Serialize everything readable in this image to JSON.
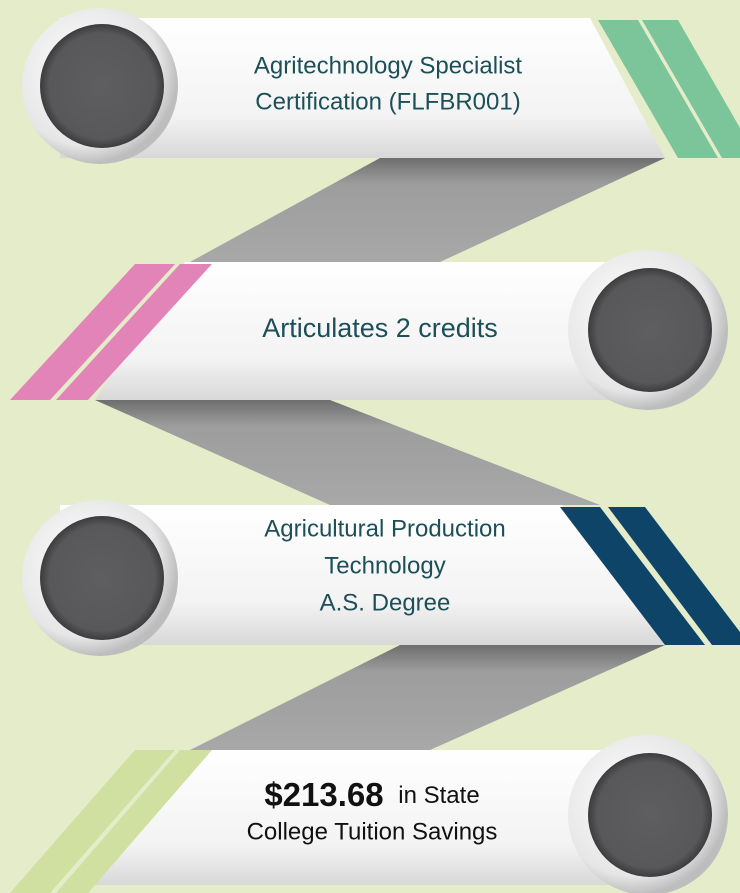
{
  "steps": [
    {
      "lines": [
        "Agritechnology Specialist",
        "Certification (FLFBR001)"
      ]
    },
    {
      "lines": [
        "Articulates 2 credits"
      ]
    },
    {
      "lines": [
        "Agricultural Production",
        "Technology",
        "A.S. Degree"
      ]
    },
    {
      "amount": "$213.68",
      "lines": [
        "in State",
        "College Tuition Savings"
      ]
    }
  ]
}
